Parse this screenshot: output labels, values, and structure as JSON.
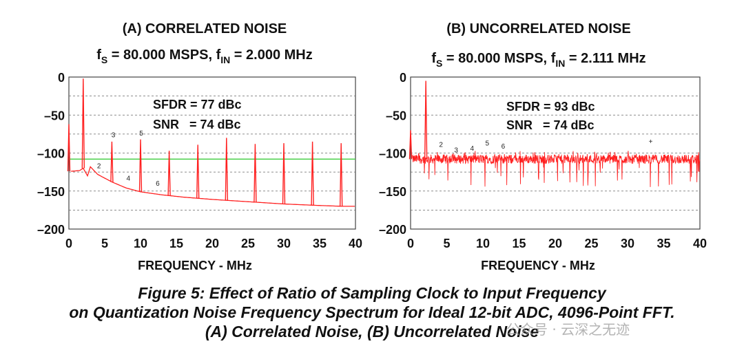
{
  "chart_data": [
    {
      "type": "line",
      "title": "(A) CORRELATED NOISE",
      "subtitle": {
        "fs_label": "f",
        "fs_sub": "S",
        "fs_value": " = 80.000 MSPS, ",
        "fin_label": "f",
        "fin_sub": "IN",
        "fin_value": " = 2.000 MHz"
      },
      "xlabel": "FREQUENCY - MHz",
      "ylabel": "",
      "xlim": [
        0,
        40
      ],
      "ylim": [
        -200,
        0
      ],
      "xticks": [
        0,
        5,
        10,
        15,
        20,
        25,
        30,
        35,
        40
      ],
      "yticks": [
        0,
        -50,
        -100,
        -150,
        -200
      ],
      "grid": "dashed horizontal every 25 dB",
      "annotations": [
        "SFDR = 77 dBc",
        "SNR   = 74 dBc"
      ],
      "reference_line": {
        "value": -108,
        "color": "#3ccc3c"
      },
      "harmonic_labels": [
        {
          "text": "2",
          "x": 4.2,
          "y": -120
        },
        {
          "text": "3",
          "x": 6.2,
          "y": -79
        },
        {
          "text": "4",
          "x": 8.3,
          "y": -136
        },
        {
          "text": "5",
          "x": 10.1,
          "y": -77
        },
        {
          "text": "6",
          "x": 12.4,
          "y": -143
        }
      ],
      "floor": {
        "x": [
          0.3,
          1.5,
          2.0,
          2.6,
          3.0,
          4.0,
          6.0,
          8.0,
          10.0,
          13.0,
          16.0,
          20.0,
          25.0,
          30.0,
          35.0,
          38.0,
          40.0
        ],
        "y": [
          -124,
          -123,
          -120,
          -130,
          -118,
          -128,
          -138,
          -146,
          -151,
          -155,
          -158,
          -161,
          -164,
          -167,
          -169,
          -170,
          -170
        ]
      },
      "spikes": [
        {
          "x": 0.0,
          "y": -62
        },
        {
          "x": 2.0,
          "y": -2
        },
        {
          "x": 6.0,
          "y": -85
        },
        {
          "x": 10.0,
          "y": -82
        },
        {
          "x": 14.0,
          "y": -97
        },
        {
          "x": 18.0,
          "y": -89
        },
        {
          "x": 22.0,
          "y": -80
        },
        {
          "x": 26.0,
          "y": -88
        },
        {
          "x": 30.0,
          "y": -87
        },
        {
          "x": 34.0,
          "y": -85
        },
        {
          "x": 38.0,
          "y": -87
        }
      ],
      "line_color": "#ff2020"
    },
    {
      "type": "line",
      "title": "(B) UNCORRELATED NOISE",
      "subtitle": {
        "fs_label": "f",
        "fs_sub": "S",
        "fs_value": " = 80.000 MSPS, ",
        "fin_label": "f",
        "fin_sub": "IN",
        "fin_value": " = 2.111 MHz"
      },
      "xlabel": "FREQUENCY - MHz",
      "ylabel": "",
      "xlim": [
        0,
        40
      ],
      "ylim": [
        -200,
        0
      ],
      "xticks": [
        0,
        5,
        10,
        15,
        20,
        25,
        30,
        35,
        40
      ],
      "yticks": [
        0,
        -50,
        -100,
        -150,
        -200
      ],
      "grid": "dashed horizontal every 25 dB",
      "annotations": [
        "SFDR = 93 dBc",
        "SNR   = 74 dBc"
      ],
      "harmonic_labels": [
        {
          "text": "2",
          "x": 4.2,
          "y": -92
        },
        {
          "text": "3",
          "x": 6.3,
          "y": -99
        },
        {
          "text": "4",
          "x": 8.5,
          "y": -97
        },
        {
          "text": "5",
          "x": 10.6,
          "y": -90
        },
        {
          "text": "6",
          "x": 12.8,
          "y": -94
        },
        {
          "text": "+",
          "x": 33.2,
          "y": -88
        }
      ],
      "noise_band": {
        "center": -108,
        "spread": 6,
        "min_dip": -145
      },
      "spikes": [
        {
          "x": 0.0,
          "y": -70
        },
        {
          "x": 2.111,
          "y": -5
        }
      ],
      "line_color": "#ff2020"
    }
  ],
  "caption": {
    "line1": "Figure 5: Effect of Ratio of Sampling Clock to Input Frequency",
    "line2": "on Quantization Noise Frequency Spectrum for Ideal 12-bit ADC, 4096-Point FFT.",
    "line3": "(A) Correlated Noise, (B) Uncorrelated Noise"
  },
  "watermark": "公众号 · 云深之无迹"
}
